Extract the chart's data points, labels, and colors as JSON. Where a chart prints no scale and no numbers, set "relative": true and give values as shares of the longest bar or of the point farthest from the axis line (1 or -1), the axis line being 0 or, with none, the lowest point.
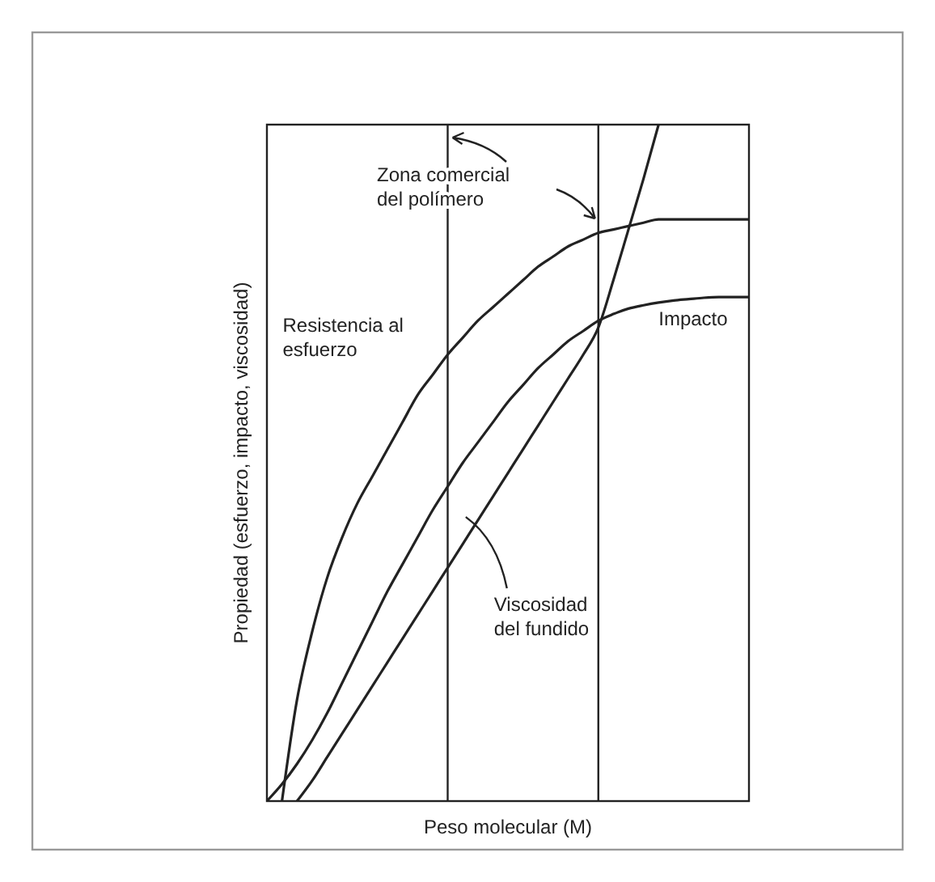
{
  "chart_data": {
    "type": "line",
    "relative": true,
    "xlabel": "Peso molecular (M)",
    "ylabel": "Propiedad (esfuerzo, impacto, viscosidad)",
    "categories": [
      null,
      null,
      null,
      null,
      null,
      null,
      null,
      null,
      null,
      null,
      null,
      null,
      null,
      null,
      null,
      null,
      null,
      null,
      null,
      null,
      null,
      null,
      null,
      null,
      null,
      null,
      null,
      null,
      null,
      null,
      null,
      null,
      null
    ],
    "series": [
      {
        "name": "Resistencia al esfuerzo",
        "color": "#222222",
        "values": [
          null,
          0.0,
          0.15,
          0.25,
          0.33,
          0.39,
          0.44,
          0.48,
          0.52,
          0.56,
          0.6,
          0.63,
          0.66,
          0.685,
          0.71,
          0.73,
          0.75,
          0.77,
          0.79,
          0.805,
          0.82,
          0.83,
          0.84,
          0.845,
          0.85,
          0.855,
          0.86,
          0.86,
          0.86,
          0.86,
          0.86,
          0.86,
          0.86
        ]
      },
      {
        "name": "Impacto",
        "color": "#222222",
        "values": [
          0,
          0.025,
          0.055,
          0.09,
          0.13,
          0.175,
          0.22,
          0.265,
          0.31,
          0.35,
          0.39,
          0.43,
          0.465,
          0.5,
          0.53,
          0.56,
          0.59,
          0.615,
          0.64,
          0.66,
          0.68,
          0.695,
          0.71,
          0.72,
          0.728,
          0.733,
          0.737,
          0.74,
          0.742,
          0.744,
          0.745,
          0.745,
          0.745
        ]
      },
      {
        "name": "Viscosidad del fundido",
        "color": "#222222",
        "values": [
          null,
          null,
          0.0,
          0.03,
          0.065,
          0.1,
          0.135,
          0.17,
          0.205,
          0.24,
          0.275,
          0.31,
          0.345,
          0.38,
          0.415,
          0.45,
          0.485,
          0.52,
          0.555,
          0.59,
          0.625,
          0.66,
          0.7,
          0.77,
          0.845,
          0.92,
          1.0,
          null,
          null,
          null,
          null,
          null,
          null
        ]
      }
    ],
    "annotations": [
      "Zona comercial del polímero"
    ],
    "grid": false,
    "legend": false,
    "marker": "none",
    "line_style": "solid"
  }
}
